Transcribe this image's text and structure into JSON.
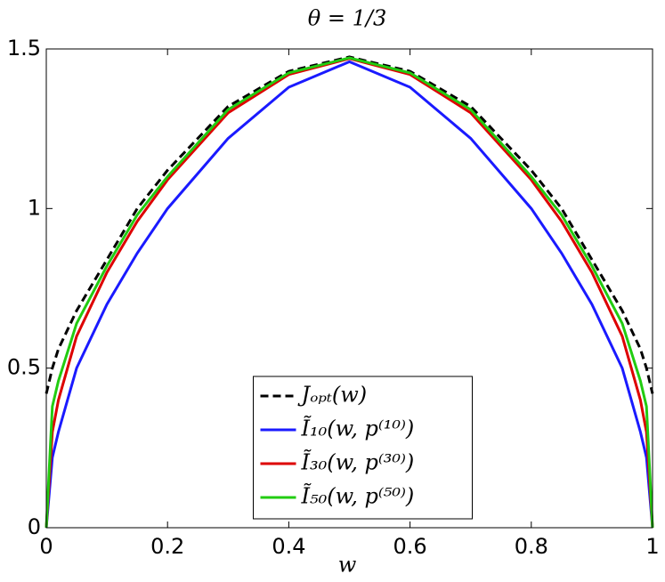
{
  "chart_data": {
    "type": "line",
    "title": "θ = 1/3",
    "xlabel": "w",
    "x": [
      0,
      0.01,
      0.02,
      0.05,
      0.1,
      0.15,
      0.2,
      0.3,
      0.4,
      0.5,
      0.6,
      0.7,
      0.8,
      0.85,
      0.9,
      0.95,
      0.98,
      0.99,
      1
    ],
    "series": [
      {
        "name": "Jₒₚₜ(w)",
        "color": "#000000",
        "dashed": true,
        "values": [
          0.42,
          0.5,
          0.56,
          0.68,
          0.84,
          1.0,
          1.12,
          1.32,
          1.43,
          1.475,
          1.43,
          1.32,
          1.12,
          1.0,
          0.84,
          0.68,
          0.56,
          0.5,
          0.42
        ]
      },
      {
        "name": "Ĩ₁₀(w, p⁽¹⁰⁾)",
        "color": "#1a1aff",
        "values": [
          0,
          0.22,
          0.3,
          0.5,
          0.7,
          0.86,
          1.0,
          1.22,
          1.38,
          1.46,
          1.38,
          1.22,
          1.0,
          0.86,
          0.7,
          0.5,
          0.3,
          0.22,
          0
        ]
      },
      {
        "name": "Ĩ₃₀(w, p⁽³⁰⁾)",
        "color": "#dd0000",
        "values": [
          0,
          0.3,
          0.4,
          0.6,
          0.8,
          0.96,
          1.09,
          1.3,
          1.42,
          1.47,
          1.42,
          1.3,
          1.09,
          0.96,
          0.8,
          0.6,
          0.4,
          0.3,
          0
        ]
      },
      {
        "name": "Ĩ₅₀(w, p⁽⁵⁰⁾)",
        "color": "#22cc11",
        "values": [
          0,
          0.38,
          0.46,
          0.64,
          0.82,
          0.98,
          1.1,
          1.31,
          1.425,
          1.472,
          1.425,
          1.31,
          1.1,
          0.98,
          0.82,
          0.64,
          0.46,
          0.38,
          0
        ]
      }
    ],
    "xlim": [
      0,
      1
    ],
    "ylim": [
      0,
      1.5
    ],
    "xticks": [
      0,
      0.2,
      0.4,
      0.6,
      0.8,
      1
    ],
    "yticks": [
      0,
      0.5,
      1,
      1.5
    ],
    "grid": false,
    "legend": "lower center"
  }
}
